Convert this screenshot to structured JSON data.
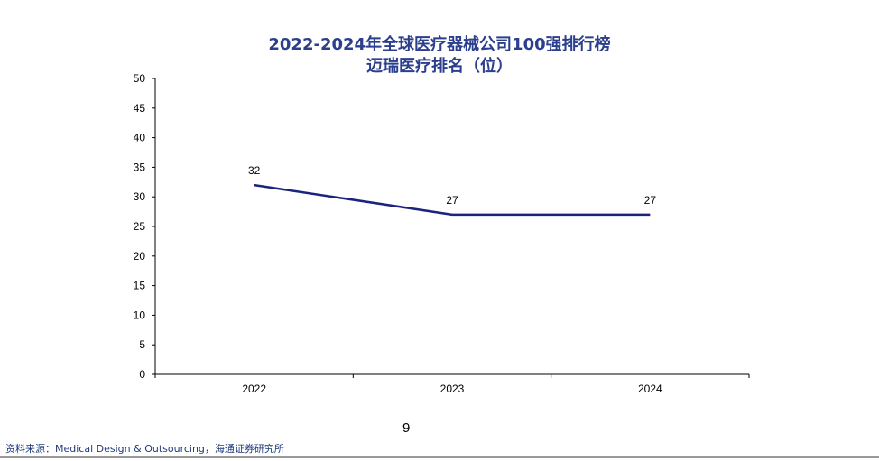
{
  "colors": {
    "title": "#2b3f8c",
    "series": "#1a237e",
    "source": "#1f3a7a"
  },
  "page_number": "9",
  "source": "资料来源：Medical Design &  Outsourcing，海通证券研究所",
  "chart_data": {
    "type": "line",
    "title": "2022-2024年全球医疗器械公司100强排行榜",
    "subtitle": "迈瑞医疗排名（位）",
    "categories": [
      "2022",
      "2023",
      "2024"
    ],
    "series": [
      {
        "values": [
          32,
          27,
          27
        ]
      }
    ],
    "data_labels": [
      "32",
      "27",
      "27"
    ],
    "y_ticks": [
      "0",
      "5",
      "10",
      "15",
      "20",
      "25",
      "30",
      "35",
      "40",
      "45",
      "50"
    ],
    "ylim": [
      0,
      50
    ],
    "grid": false
  }
}
